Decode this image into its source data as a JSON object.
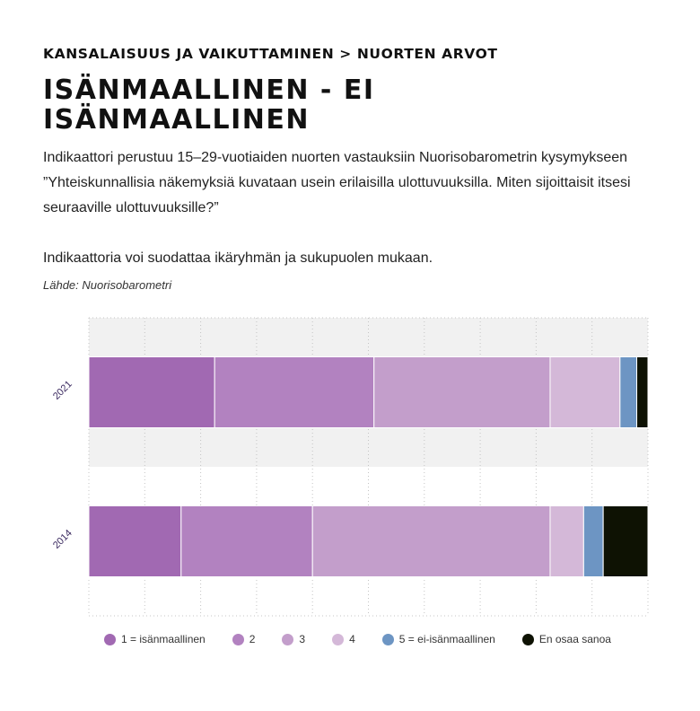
{
  "breadcrumb": "KANSALAISUUS JA VAIKUTTAMINEN > NUORTEN ARVOT",
  "title": "ISÄNMAALLINEN - EI ISÄNMAALLINEN",
  "description": "Indikaattori perustuu 15–29-vuotiaiden nuorten vastauksiin Nuorisobarometrin kysymykseen ”Yhteiskunnallisia näkemyksiä kuvataan usein erilaisilla ulottuvuuksilla. Miten sijoittaisit itsesi seuraaville ulottuvuuksille?”",
  "filter_note": "Indikaattoria voi suodattaa ikäryhmän ja sukupuolen mukaan.",
  "source": "Lähde: Nuorisobarometri",
  "chart_data": {
    "type": "bar",
    "orientation": "horizontal",
    "stacked": true,
    "percent": true,
    "categories": [
      "2021",
      "2014"
    ],
    "series": [
      {
        "name": "1 = isänmaallinen",
        "color": "#a169b2",
        "values": [
          22.5,
          16.5
        ]
      },
      {
        "name": "2",
        "color": "#b282c0",
        "values": [
          28.5,
          23.5
        ]
      },
      {
        "name": "3",
        "color": "#c39ecb",
        "values": [
          31.5,
          42.5
        ]
      },
      {
        "name": "4",
        "color": "#d4b8d8",
        "values": [
          12.5,
          6.0
        ]
      },
      {
        "name": "5 = ei-isänmaallinen",
        "color": "#6d95c3",
        "values": [
          3.0,
          3.5
        ]
      },
      {
        "name": "En osaa sanoa",
        "color": "#0e1203",
        "values": [
          2.0,
          8.0
        ]
      }
    ],
    "xlim": [
      0,
      100
    ],
    "grid": true,
    "legend_position": "bottom"
  }
}
